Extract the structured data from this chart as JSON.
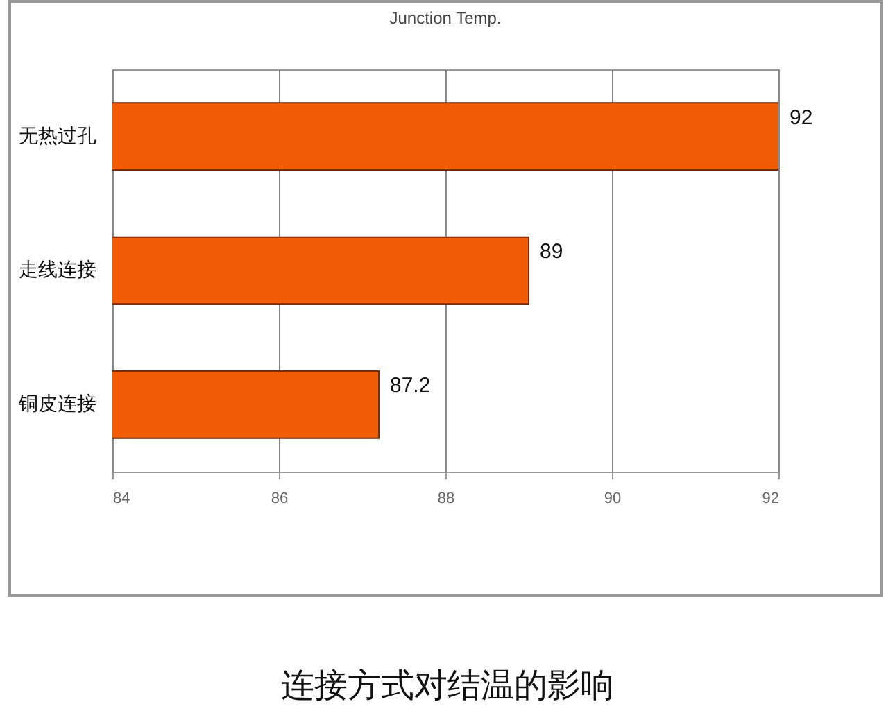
{
  "chart_data": {
    "type": "bar",
    "orientation": "horizontal",
    "title": "Junction Temp.",
    "categories": [
      "无热过孔",
      "走线连接",
      "铜皮连接"
    ],
    "values": [
      92,
      89,
      87.2
    ],
    "color": "#f25c05",
    "xlim": [
      84,
      92
    ],
    "xticks": [
      84,
      86,
      88,
      90,
      92
    ],
    "grid": "x",
    "data_labels": true,
    "annotations": [
      "连接方式对结温的影响"
    ]
  }
}
